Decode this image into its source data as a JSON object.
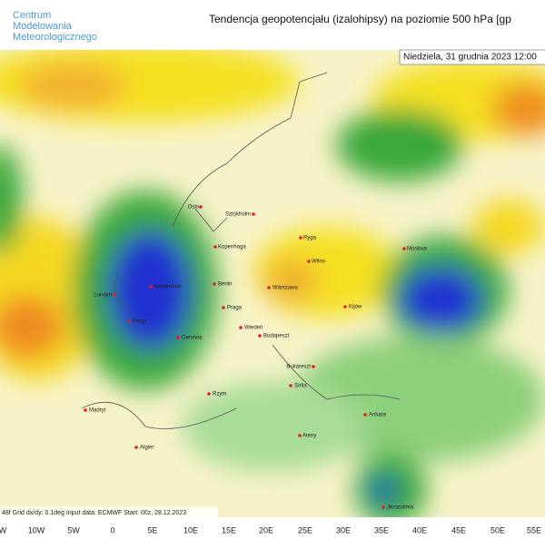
{
  "logo": [
    "Centrum",
    "Modelowania",
    "Meteorologicznego"
  ],
  "title": "Tendencja geopotencjału (izalohipsy) na poziomie 500 hPa  [gp",
  "date": "Niedziela, 31 grudnia 2023 12:00",
  "footer": "48f  Grid dx/dy: 0.1deg  Input data: ECMWF  Start: 00z, 28.12.2023",
  "longitudes": [
    "W",
    "10W",
    "5W",
    "0",
    "5E",
    "10E",
    "15E",
    "20E",
    "25E",
    "30E",
    "35E",
    "40E",
    "45E",
    "50E",
    "55E"
  ],
  "cities": [
    "Oslo",
    "Sztokholm",
    "Kopenhaga",
    "Ryga",
    "Moskwa",
    "Wilno",
    "Londyn",
    "Amsterdam",
    "Berlin",
    "Warszawa",
    "Kijów",
    "Paryż",
    "Praga",
    "Wiedeń",
    "Budapeszt",
    "Genewa",
    "Bukareszt",
    "Sofia",
    "Rzym",
    "Madryt",
    "Ankara",
    "Ateny",
    "Algier",
    "Jerozolima"
  ]
}
